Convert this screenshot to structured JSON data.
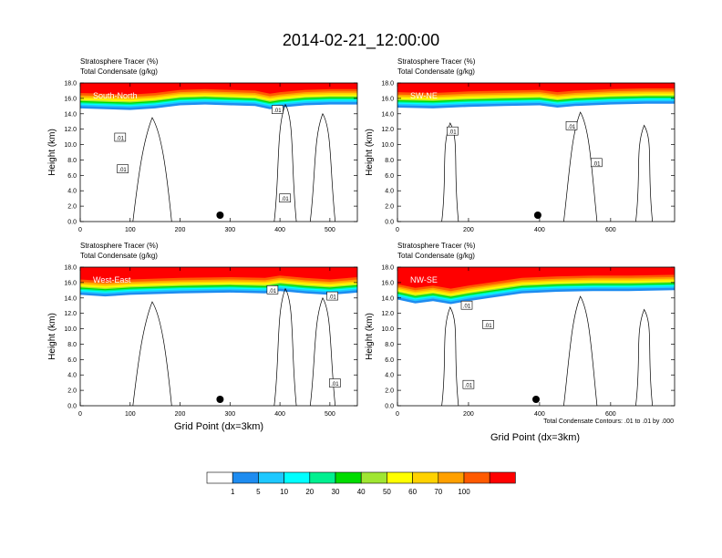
{
  "figure": {
    "title": "2014-02-21_12:00:00",
    "contour_note": "Total Condensate Contours: .01 to .01 by .000",
    "x_axis_title": "Grid Point (dx=3km)"
  },
  "colorbar": {
    "colors": [
      "#ffffff",
      "#1e8cf0",
      "#1ec8ff",
      "#00ffff",
      "#00f090",
      "#00dc00",
      "#a0e632",
      "#ffff00",
      "#ffd200",
      "#ffa000",
      "#ff5a00",
      "#ff0000"
    ],
    "labels": [
      "1",
      "5",
      "10",
      "20",
      "30",
      "40",
      "50",
      "60",
      "70",
      "100"
    ]
  },
  "chart_data": [
    {
      "type": "heatmap",
      "panel_label": "South-North",
      "title_line1": "Stratosphere Tracer   (%)",
      "title_line2": "Total Condensate   (g/kg)",
      "ylabel": "Height (km)",
      "xlabel": "",
      "xlim": [
        0,
        555
      ],
      "ylim": [
        0,
        18
      ],
      "x_ticks": [
        0,
        100,
        200,
        300,
        400,
        500
      ],
      "y_ticks": [
        "0.0",
        "2.0",
        "4.0",
        "6.0",
        "8.0",
        "10.0",
        "12.0",
        "14.0",
        "16.0",
        "18.0"
      ],
      "marker_x": 280,
      "contour_labels": [
        {
          "text": ".01",
          "x": 80,
          "y": 10.9
        },
        {
          "text": ".01",
          "x": 85,
          "y": 6.8
        },
        {
          "text": ".01",
          "x": 395,
          "y": 14.5
        },
        {
          "text": ".01",
          "x": 410,
          "y": 3.0
        }
      ],
      "tracer_top": [
        [
          0,
          15.9
        ],
        [
          50,
          15.8
        ],
        [
          100,
          15.7
        ],
        [
          150,
          15.9
        ],
        [
          200,
          16.3
        ],
        [
          250,
          16.4
        ],
        [
          300,
          16.3
        ],
        [
          350,
          16.2
        ],
        [
          380,
          15.8
        ],
        [
          400,
          16.0
        ],
        [
          450,
          16.3
        ],
        [
          500,
          16.4
        ],
        [
          555,
          16.4
        ]
      ]
    },
    {
      "type": "heatmap",
      "panel_label": "SW-NE",
      "title_line1": "Stratosphere Tracer   (%)",
      "title_line2": "Total Condensate   (g/kg)",
      "ylabel": "Height (km)",
      "xlabel": "",
      "xlim": [
        0,
        780
      ],
      "ylim": [
        0,
        18
      ],
      "x_ticks": [
        0,
        200,
        400,
        600
      ],
      "y_ticks": [
        "0.0",
        "2.0",
        "4.0",
        "6.0",
        "8.0",
        "10.0",
        "12.0",
        "14.0",
        "16.0",
        "18.0"
      ],
      "marker_x": 395,
      "contour_labels": [
        {
          "text": ".01",
          "x": 155,
          "y": 11.7
        },
        {
          "text": ".01",
          "x": 490,
          "y": 12.4
        },
        {
          "text": ".01",
          "x": 560,
          "y": 7.6
        }
      ],
      "tracer_top": [
        [
          0,
          16.0
        ],
        [
          100,
          15.9
        ],
        [
          200,
          16.1
        ],
        [
          300,
          16.2
        ],
        [
          400,
          16.3
        ],
        [
          450,
          16.0
        ],
        [
          500,
          16.2
        ],
        [
          600,
          16.4
        ],
        [
          700,
          16.5
        ],
        [
          780,
          16.5
        ]
      ]
    },
    {
      "type": "heatmap",
      "panel_label": "West-East",
      "title_line1": "Stratosphere Tracer   (%)",
      "title_line2": "Total Condensate   (g/kg)",
      "ylabel": "Height (km)",
      "xlabel": "Grid Point (dx=3km)",
      "xlim": [
        0,
        555
      ],
      "ylim": [
        0,
        18
      ],
      "x_ticks": [
        0,
        100,
        200,
        300,
        400,
        500
      ],
      "y_ticks": [
        "0.0",
        "2.0",
        "4.0",
        "6.0",
        "8.0",
        "10.0",
        "12.0",
        "14.0",
        "16.0",
        "18.0"
      ],
      "marker_x": 280,
      "contour_labels": [
        {
          "text": ".01",
          "x": 385,
          "y": 15.0
        },
        {
          "text": ".01",
          "x": 505,
          "y": 14.2
        },
        {
          "text": ".01",
          "x": 510,
          "y": 2.9
        }
      ],
      "tracer_top": [
        [
          0,
          15.6
        ],
        [
          50,
          15.4
        ],
        [
          100,
          15.6
        ],
        [
          200,
          15.8
        ],
        [
          300,
          15.9
        ],
        [
          370,
          15.8
        ],
        [
          400,
          16.1
        ],
        [
          450,
          15.8
        ],
        [
          500,
          15.6
        ],
        [
          555,
          15.9
        ]
      ]
    },
    {
      "type": "heatmap",
      "panel_label": "NW-SE",
      "title_line1": "Stratosphere Tracer   (%)",
      "title_line2": "Total Condensate   (g/kg)",
      "ylabel": "Height (km)",
      "xlabel": "Grid Point (dx=3km)",
      "xlim": [
        0,
        780
      ],
      "ylim": [
        0,
        18
      ],
      "x_ticks": [
        0,
        200,
        400,
        600
      ],
      "y_ticks": [
        "0.0",
        "2.0",
        "4.0",
        "6.0",
        "8.0",
        "10.0",
        "12.0",
        "14.0",
        "16.0",
        "18.0"
      ],
      "marker_x": 390,
      "contour_labels": [
        {
          "text": ".01",
          "x": 195,
          "y": 13.0
        },
        {
          "text": ".01",
          "x": 255,
          "y": 10.5
        },
        {
          "text": ".01",
          "x": 200,
          "y": 2.7
        }
      ],
      "tracer_top": [
        [
          0,
          15.0
        ],
        [
          50,
          14.5
        ],
        [
          100,
          14.8
        ],
        [
          150,
          14.4
        ],
        [
          200,
          14.8
        ],
        [
          260,
          15.2
        ],
        [
          350,
          15.8
        ],
        [
          450,
          16.0
        ],
        [
          550,
          16.1
        ],
        [
          650,
          16.1
        ],
        [
          780,
          16.2
        ]
      ]
    }
  ]
}
